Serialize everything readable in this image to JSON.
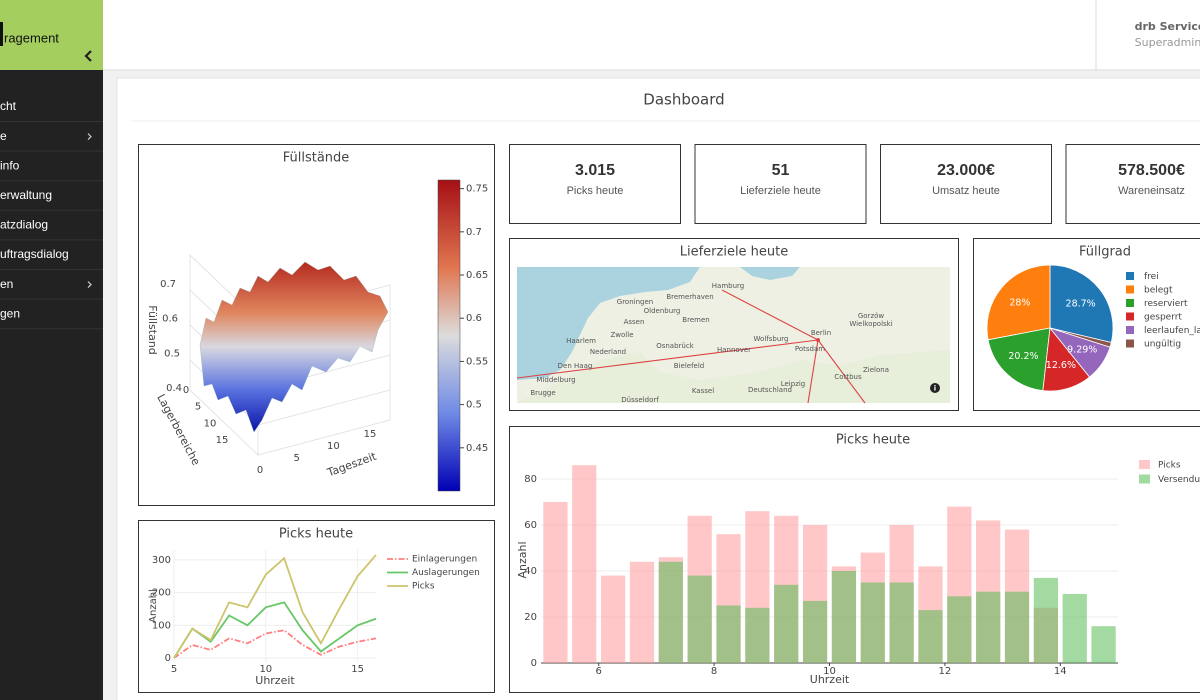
{
  "sidebar": {
    "brand": "ragement",
    "items": [
      "cht",
      "e",
      "info",
      "erwaltung",
      "atzdialog",
      "uftragsdialog",
      "en",
      "gen"
    ]
  },
  "header": {
    "user": "drb Service",
    "role": "Superadmin"
  },
  "page_title": "Dashboard",
  "kpis": [
    {
      "value": "3.015",
      "label": "Picks heute"
    },
    {
      "value": "51",
      "label": "Lieferziele heute"
    },
    {
      "value": "23.000€",
      "label": "Umsatz heute"
    },
    {
      "value": "578.500€",
      "label": "Wareneinsatz"
    }
  ],
  "map": {
    "title": "Lieferziele heute",
    "places": [
      "Hamburg",
      "Bremerhaven",
      "Groningen",
      "Oldenburg",
      "Bremen",
      "Assen",
      "Zwolle",
      "Osnabrück",
      "Hannover",
      "Wolfsburg",
      "Berlin",
      "Potsdam",
      "Haarlem",
      "Nederland",
      "Den Haag",
      "Middelburg",
      "Brugge",
      "Bielefeld",
      "Kassel",
      "Deutschland",
      "Leipzig",
      "Düsseldorf",
      "Zielona",
      "Cottbus",
      "Gorzów",
      "Wielkopolski"
    ]
  },
  "chart_data": [
    {
      "type": "surface",
      "title": "Füllstände",
      "zlabel": "Füllstand",
      "ylabel": "Lagerbereiche",
      "xlabel": "Tageszeit",
      "zticks": [
        0.4,
        0.5,
        0.6,
        0.7
      ],
      "yticks": [
        0,
        5,
        10,
        15
      ],
      "xticks": [
        0,
        5,
        10,
        15
      ],
      "clim": [
        0.4,
        0.76
      ],
      "cticks": [
        0.45,
        0.5,
        0.55,
        0.6,
        0.65,
        0.7,
        0.75
      ]
    },
    {
      "type": "pie",
      "title": "Füllgrad",
      "categories": [
        "frei",
        "belegt",
        "reserviert",
        "gesperrt",
        "leerlaufen_la",
        "ungültig"
      ],
      "values": [
        28.7,
        28,
        20.2,
        12.6,
        9.29,
        1.21
      ],
      "value_labels": [
        "28.7%",
        "28%",
        "20.2%",
        "12.6%",
        "9.29%",
        null
      ],
      "colors": [
        "#1f77b4",
        "#ff7f0e",
        "#2ca02c",
        "#d62728",
        "#9467bd",
        "#8c564b"
      ]
    },
    {
      "type": "line",
      "title": "Picks heute",
      "xlabel": "Uhrzeit",
      "ylabel": "Anzahl",
      "x": [
        5,
        6,
        7,
        8,
        9,
        10,
        11,
        12,
        13,
        14,
        15,
        16
      ],
      "series": [
        {
          "name": "Einlagerungen",
          "color": "#ff8080",
          "dash": "dashdot",
          "values": [
            0,
            40,
            25,
            60,
            45,
            75,
            85,
            40,
            10,
            35,
            50,
            60
          ]
        },
        {
          "name": "Auslagerungen",
          "color": "#66c766",
          "values": [
            0,
            90,
            50,
            130,
            100,
            155,
            170,
            85,
            20,
            60,
            100,
            120
          ]
        },
        {
          "name": "Picks",
          "color": "#cdc46b",
          "values": [
            0,
            90,
            55,
            170,
            155,
            255,
            305,
            140,
            45,
            150,
            250,
            315
          ]
        }
      ],
      "xlim": [
        5,
        16
      ],
      "ylim": [
        -12,
        330
      ],
      "xticks": [
        5,
        10,
        15
      ],
      "yticks": [
        0,
        100,
        200,
        300
      ],
      "grid": true
    },
    {
      "type": "bar",
      "title": "Picks heute",
      "xlabel": "Uhrzeit",
      "ylabel": "Anzahl",
      "x": [
        5.25,
        5.75,
        6.25,
        6.75,
        7.25,
        7.75,
        8.25,
        8.75,
        9.25,
        9.75,
        10.25,
        10.75,
        11.25,
        11.75,
        12.25,
        12.75,
        13.25,
        13.75,
        14.25,
        14.75
      ],
      "series": [
        {
          "name": "Picks",
          "color": "#ff9999",
          "values": [
            70,
            86,
            38,
            44,
            46,
            64,
            56,
            66,
            64,
            60,
            42,
            48,
            60,
            42,
            68,
            62,
            58,
            24,
            0,
            0
          ]
        },
        {
          "name": "Versendun",
          "color": "#55bb55",
          "values": [
            0,
            0,
            0,
            0,
            44,
            38,
            25,
            24,
            34,
            27,
            40,
            35,
            35,
            23,
            29,
            31,
            31,
            37,
            30,
            16
          ]
        }
      ],
      "xlim": [
        5,
        15
      ],
      "ylim": [
        0,
        90
      ],
      "xticks": [
        6,
        8,
        10,
        12,
        14
      ],
      "yticks": [
        0,
        20,
        40,
        60,
        80
      ],
      "grid": true
    }
  ]
}
